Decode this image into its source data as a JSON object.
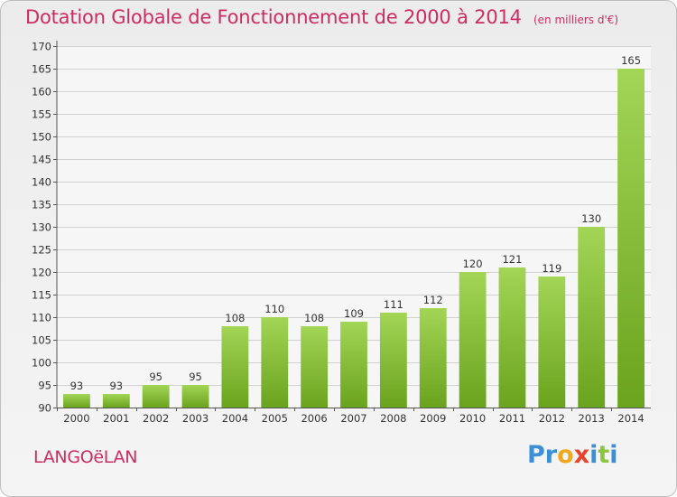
{
  "title": "Dotation Globale de Fonctionnement de 2000 à 2014",
  "subtitle": "(en milliers d'€)",
  "commune": "LANGOëLAN",
  "logo": {
    "text": "Proxiti",
    "letters": [
      {
        "ch": "P",
        "color": "#3a8fd6"
      },
      {
        "ch": "r",
        "color": "#3a8fd6"
      },
      {
        "ch": "o",
        "color": "#f0a81c"
      },
      {
        "ch": "x",
        "color": "#e8432e"
      },
      {
        "ch": "i",
        "color": "#3a8fd6"
      },
      {
        "ch": "t",
        "color": "#8cc63f"
      },
      {
        "ch": "i",
        "color": "#3a8fd6"
      }
    ]
  },
  "colors": {
    "title": "#cc2c63",
    "bar_light": "#9fd24f",
    "bar_dark": "#6ea620",
    "grid": "#d0d0d0",
    "axis": "#555555"
  },
  "chart_data": {
    "type": "bar",
    "categories": [
      "2000",
      "2001",
      "2002",
      "2003",
      "2004",
      "2005",
      "2006",
      "2007",
      "2008",
      "2009",
      "2010",
      "2011",
      "2012",
      "2013",
      "2014"
    ],
    "values": [
      93,
      93,
      95,
      95,
      108,
      110,
      108,
      109,
      111,
      112,
      120,
      121,
      119,
      130,
      165
    ],
    "ylim": [
      90,
      170
    ],
    "yticks": [
      90,
      95,
      100,
      105,
      110,
      115,
      120,
      125,
      130,
      135,
      140,
      145,
      150,
      155,
      160,
      165,
      170
    ],
    "grid": true,
    "legend": "none"
  }
}
